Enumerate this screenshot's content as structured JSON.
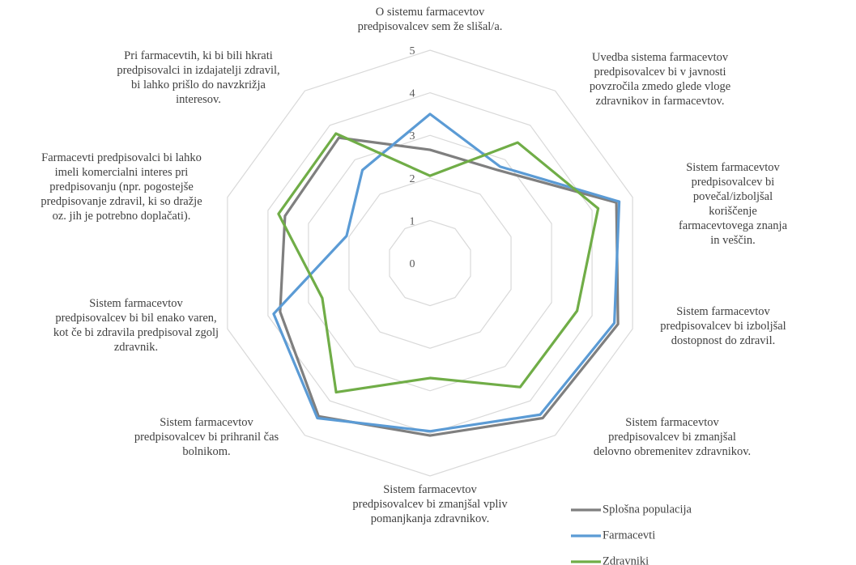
{
  "chart_data": {
    "type": "radar",
    "categories": [
      "O sistemu farmacevtov\npredpisovalcev sem že slišal/a.",
      "Uvedba sistema farmacevtov\npredpisovalcev bi v javnosti\npovzročila zmedo glede vloge\nzdravnikov in farmacevtov.",
      "Sistem farmacevtov\npredpisovalcev bi povečal/izboljšal\nkoriščenje farmacevtovega znanja\nin veščin.",
      "Sistem farmacevtov\npredpisovalcev bi izboljšal\ndostopnost do zdravil.",
      "Sistem farmacevtov\npredpisovalcev bi zmanjšal\ndelovno obremenitev zdravnikov.",
      "Sistem farmacevtov\npredpisovalcev bi zmanjšal vpliv\npomanjkanja zdravnikov.",
      "Sistem farmacevtov\npredpisovalcev bi prihranil čas\nbolnikom.",
      "Sistem farmacevtov\npredpisovalcev bi bil enako varen,\nkot če bi zdravila predpisoval zgolj\nzdravnik.",
      "Farmacevti predpisovalci bi lahko\nimeli komercialni interes pri\npredpisovanju (npr. pogostejše\npredpisovanje zdravil, ki so dražje\noz. jih je potrebno doplačati).",
      "Pri farmacevtih, ki bi bili hkrati\npredpisovalci in izdajatelji zdravil,\nbi lahko prišlo do navzkrižja\ninteresov."
    ],
    "series": [
      {
        "name": "Splošna populacija",
        "color": "#7f7f7f",
        "values": [
          2.66,
          2.7,
          4.6,
          4.64,
          4.5,
          4.05,
          4.45,
          3.7,
          3.58,
          3.64
        ]
      },
      {
        "name": "Farmacevti",
        "color": "#5b9bd5",
        "values": [
          3.5,
          2.8,
          4.67,
          4.55,
          4.4,
          3.95,
          4.5,
          3.86,
          2.06,
          2.7
        ]
      },
      {
        "name": "Zdravniki",
        "color": "#70ad47",
        "values": [
          2.05,
          3.5,
          4.15,
          3.63,
          3.6,
          2.7,
          3.75,
          2.66,
          3.74,
          3.76
        ]
      }
    ],
    "ylim": [
      0,
      5
    ],
    "yticks": [
      0,
      1,
      2,
      3,
      4,
      5
    ],
    "grid": true
  }
}
